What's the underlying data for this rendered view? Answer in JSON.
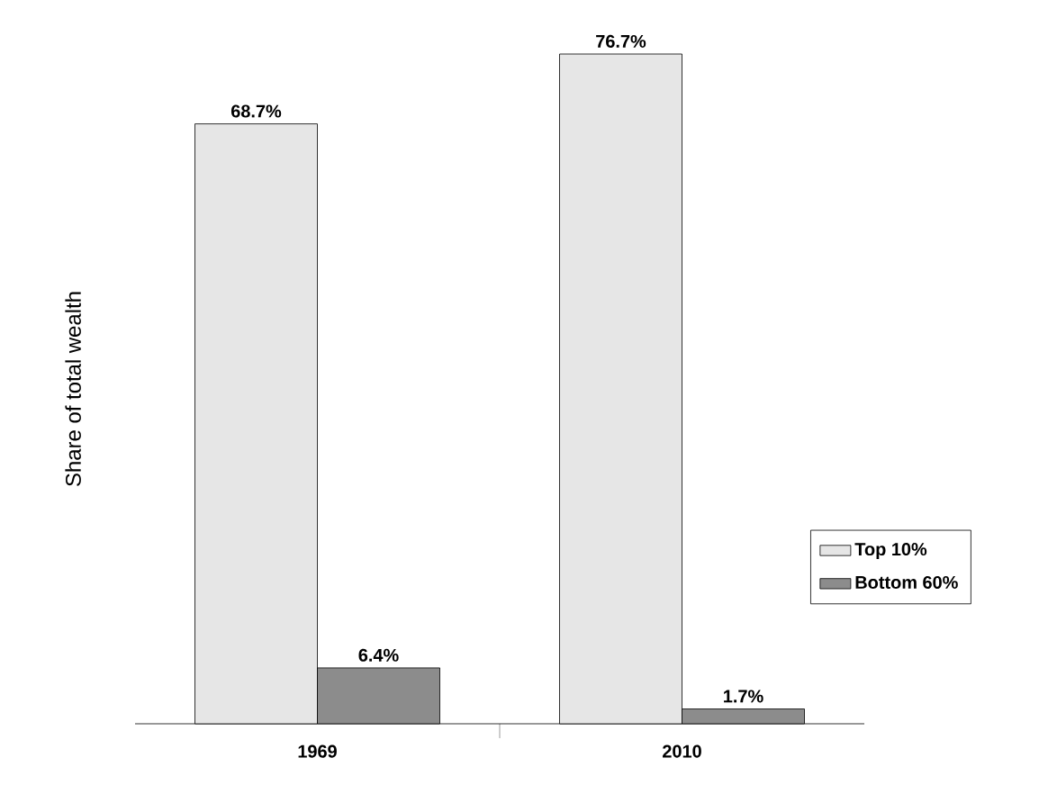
{
  "chart_data": {
    "type": "bar",
    "ylabel": "Share of total wealth",
    "categories": [
      "1969",
      "2010"
    ],
    "series": [
      {
        "name": "Top 10%",
        "color": "#e6e6e6",
        "values": [
          68.7,
          76.7
        ],
        "value_labels": [
          "68.7%",
          "76.7%"
        ]
      },
      {
        "name": "Bottom 60%",
        "color": "#8c8c8c",
        "values": [
          6.4,
          1.7
        ],
        "value_labels": [
          "6.4%",
          "1.7%"
        ]
      }
    ],
    "legend": "right"
  }
}
